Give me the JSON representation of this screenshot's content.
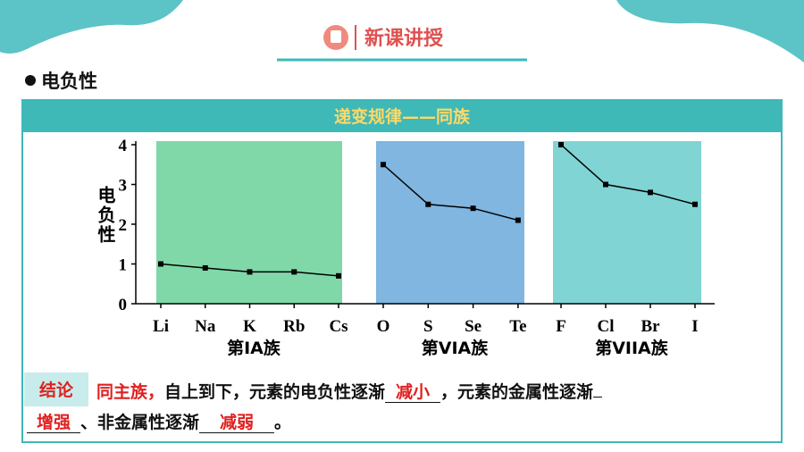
{
  "header": {
    "title": "新课讲授"
  },
  "section": "电负性",
  "panel_title": "递变规律——同族",
  "chart_data": [
    {
      "type": "line",
      "categories": [
        "Li",
        "Na",
        "K",
        "Rb",
        "Cs"
      ],
      "values": [
        1.0,
        0.9,
        0.8,
        0.8,
        0.7
      ],
      "color": "#000000",
      "background": "#80d8a8",
      "xlabel": "第IA族",
      "ylim": [
        0,
        4
      ],
      "yticks": [
        0,
        1,
        2,
        3,
        4
      ],
      "ylabel": "电负性"
    },
    {
      "type": "line",
      "categories": [
        "O",
        "S",
        "Se",
        "Te"
      ],
      "values": [
        3.5,
        2.5,
        2.4,
        2.1
      ],
      "color": "#000000",
      "background": "#80b6e0",
      "xlabel": "第VIA族",
      "ylim": [
        0,
        4
      ]
    },
    {
      "type": "line",
      "categories": [
        "F",
        "Cl",
        "Br",
        "I"
      ],
      "values": [
        4.0,
        3.0,
        2.8,
        2.5
      ],
      "color": "#000000",
      "background": "#80d4d4",
      "xlabel": "第VIIA族",
      "ylim": [
        0,
        4
      ]
    }
  ],
  "conclusion": {
    "label": "结论",
    "subject": "同主族，",
    "text1": "自上到下，元素的电负性逐渐",
    "answer1": "减小",
    "text2": "，元素的金属性逐渐",
    "answer2": "增强",
    "text3": "、非金属性逐渐",
    "answer3": "减弱",
    "end": "。"
  }
}
